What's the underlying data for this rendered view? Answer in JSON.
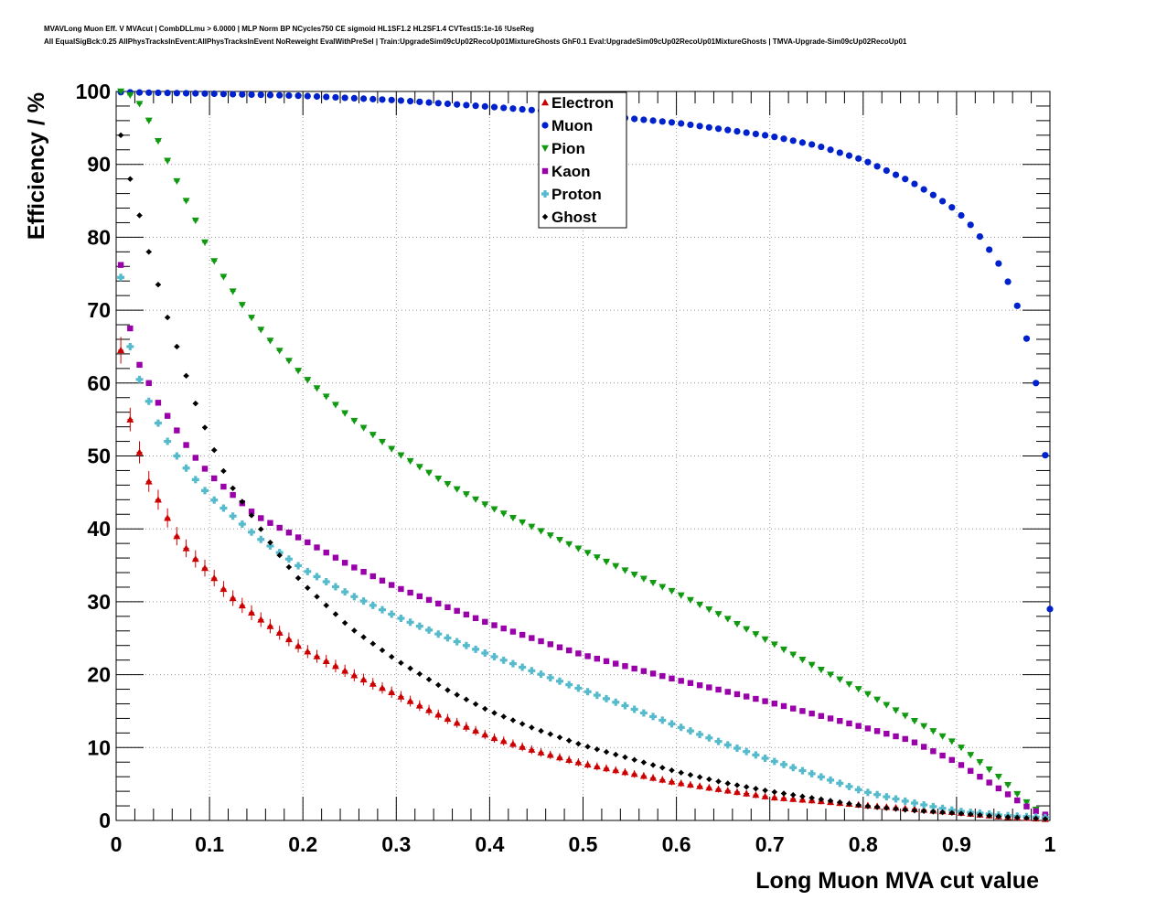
{
  "header": {
    "title_line1": "MVAVLong Muon Eff. V MVAcut | CombDLLmu > 6.0000 | MLP Norm BP NCycles750 CE sigmoid HL1SF1.2 HL2SF1.4 CVTest15:1e-16 !UseReg",
    "title_line2": "All EqualSigBck:0.25 AllPhysTracksInEvent:AllPhysTracksInEvent NoReweight EvalWithPreSel | Train:UpgradeSim09cUp02RecoUp01MixtureGhosts GhF0.1 Eval:UpgradeSim09cUp02RecoUp01MixtureGhosts | TMVA-Upgrade-Sim09cUp02RecoUp01"
  },
  "chart_data": {
    "type": "scatter",
    "xlabel": "Long Muon MVA cut value",
    "ylabel": "Efficiency / %",
    "xlim": [
      0,
      1
    ],
    "ylim": [
      0,
      100
    ],
    "grid": true,
    "legend_position": "top-center",
    "x_ticks": [
      "0",
      "0.1",
      "0.2",
      "0.3",
      "0.4",
      "0.5",
      "0.6",
      "0.7",
      "0.8",
      "0.9",
      "1"
    ],
    "y_ticks": [
      "0",
      "10",
      "20",
      "30",
      "40",
      "50",
      "60",
      "70",
      "80",
      "90",
      "100"
    ],
    "x_step": 0.01,
    "x_first": 0.005,
    "series": [
      {
        "name": "Electron",
        "marker": "triangle-up",
        "color": "#cc0000",
        "anchors": [
          [
            0.005,
            64.5
          ],
          [
            0.015,
            55
          ],
          [
            0.025,
            50.5
          ],
          [
            0.035,
            46.5
          ],
          [
            0.045,
            44
          ],
          [
            0.055,
            41.5
          ],
          [
            0.065,
            39
          ],
          [
            0.08,
            36.5
          ],
          [
            0.1,
            34
          ],
          [
            0.12,
            31
          ],
          [
            0.15,
            28
          ],
          [
            0.2,
            23.5
          ],
          [
            0.25,
            20.2
          ],
          [
            0.3,
            17.3
          ],
          [
            0.35,
            14.2
          ],
          [
            0.4,
            11.5
          ],
          [
            0.45,
            9.5
          ],
          [
            0.5,
            7.8
          ],
          [
            0.55,
            6.5
          ],
          [
            0.6,
            5.2
          ],
          [
            0.65,
            4.2
          ],
          [
            0.7,
            3.2
          ],
          [
            0.75,
            2.7
          ],
          [
            0.8,
            2.1
          ],
          [
            0.85,
            1.6
          ],
          [
            0.9,
            1.1
          ],
          [
            0.95,
            0.5
          ],
          [
            0.995,
            0.2
          ]
        ]
      },
      {
        "name": "Muon",
        "marker": "circle",
        "color": "#0022cc",
        "anchors": [
          [
            0.005,
            99.9
          ],
          [
            0.1,
            99.7
          ],
          [
            0.2,
            99.4
          ],
          [
            0.3,
            98.8
          ],
          [
            0.4,
            97.9
          ],
          [
            0.5,
            96.9
          ],
          [
            0.6,
            95.7
          ],
          [
            0.7,
            93.9
          ],
          [
            0.75,
            92.6
          ],
          [
            0.8,
            90.6
          ],
          [
            0.85,
            87.7
          ],
          [
            0.875,
            85.8
          ],
          [
            0.895,
            84.1
          ],
          [
            0.905,
            83
          ],
          [
            0.915,
            81.7
          ],
          [
            0.925,
            80.1
          ],
          [
            0.935,
            78.3
          ],
          [
            0.945,
            76.4
          ],
          [
            0.955,
            73.9
          ],
          [
            0.965,
            70.6
          ],
          [
            0.975,
            66.1
          ],
          [
            0.985,
            60
          ],
          [
            0.995,
            50.1
          ],
          [
            1.0,
            29
          ]
        ]
      },
      {
        "name": "Pion",
        "marker": "triangle-down",
        "color": "#119911",
        "anchors": [
          [
            0.005,
            100
          ],
          [
            0.015,
            99.5
          ],
          [
            0.025,
            98.3
          ],
          [
            0.035,
            96
          ],
          [
            0.045,
            93.2
          ],
          [
            0.055,
            90.5
          ],
          [
            0.065,
            87.7
          ],
          [
            0.075,
            85
          ],
          [
            0.085,
            82.3
          ],
          [
            0.1,
            77.8
          ],
          [
            0.12,
            73.5
          ],
          [
            0.14,
            69.8
          ],
          [
            0.16,
            66.5
          ],
          [
            0.2,
            61
          ],
          [
            0.25,
            55.3
          ],
          [
            0.3,
            50.5
          ],
          [
            0.35,
            46.5
          ],
          [
            0.4,
            43
          ],
          [
            0.45,
            40
          ],
          [
            0.5,
            37
          ],
          [
            0.55,
            34
          ],
          [
            0.6,
            31.2
          ],
          [
            0.65,
            28
          ],
          [
            0.7,
            24.5
          ],
          [
            0.75,
            21
          ],
          [
            0.8,
            17.7
          ],
          [
            0.85,
            14
          ],
          [
            0.9,
            10.5
          ],
          [
            0.93,
            7.5
          ],
          [
            0.95,
            5.5
          ],
          [
            0.97,
            3
          ],
          [
            0.985,
            1.5
          ],
          [
            0.995,
            0.5
          ]
        ]
      },
      {
        "name": "Kaon",
        "marker": "square",
        "color": "#9900aa",
        "anchors": [
          [
            0.005,
            76.2
          ],
          [
            0.015,
            67.5
          ],
          [
            0.025,
            62.5
          ],
          [
            0.035,
            60
          ],
          [
            0.045,
            57.3
          ],
          [
            0.055,
            55.5
          ],
          [
            0.065,
            53.5
          ],
          [
            0.08,
            50.5
          ],
          [
            0.1,
            47.5
          ],
          [
            0.15,
            41.8
          ],
          [
            0.2,
            38.5
          ],
          [
            0.25,
            35
          ],
          [
            0.3,
            32
          ],
          [
            0.35,
            29.5
          ],
          [
            0.4,
            27
          ],
          [
            0.45,
            24.8
          ],
          [
            0.5,
            22.7
          ],
          [
            0.55,
            21
          ],
          [
            0.6,
            19.3
          ],
          [
            0.65,
            17.8
          ],
          [
            0.7,
            16.2
          ],
          [
            0.75,
            14.5
          ],
          [
            0.8,
            12.8
          ],
          [
            0.85,
            11
          ],
          [
            0.9,
            8
          ],
          [
            0.95,
            4
          ],
          [
            0.98,
            1.5
          ],
          [
            0.995,
            0.8
          ]
        ]
      },
      {
        "name": "Proton",
        "marker": "plus",
        "color": "#55bbcc",
        "anchors": [
          [
            0.005,
            74.5
          ],
          [
            0.015,
            65
          ],
          [
            0.025,
            60.5
          ],
          [
            0.035,
            57.5
          ],
          [
            0.045,
            54.5
          ],
          [
            0.055,
            52
          ],
          [
            0.065,
            50
          ],
          [
            0.08,
            47.5
          ],
          [
            0.1,
            44.5
          ],
          [
            0.15,
            39
          ],
          [
            0.2,
            34.5
          ],
          [
            0.25,
            31
          ],
          [
            0.3,
            28
          ],
          [
            0.35,
            25.3
          ],
          [
            0.4,
            22.7
          ],
          [
            0.45,
            20.3
          ],
          [
            0.5,
            17.9
          ],
          [
            0.55,
            15.5
          ],
          [
            0.6,
            13
          ],
          [
            0.65,
            10.6
          ],
          [
            0.7,
            8.3
          ],
          [
            0.75,
            6.2
          ],
          [
            0.8,
            4
          ],
          [
            0.85,
            2.5
          ],
          [
            0.9,
            1.3
          ],
          [
            0.95,
            0.7
          ],
          [
            0.995,
            0.4
          ]
        ]
      },
      {
        "name": "Ghost",
        "marker": "diamond",
        "color": "#000000",
        "anchors": [
          [
            0.005,
            94
          ],
          [
            0.015,
            88
          ],
          [
            0.025,
            83
          ],
          [
            0.035,
            78
          ],
          [
            0.045,
            73.5
          ],
          [
            0.055,
            69
          ],
          [
            0.065,
            65
          ],
          [
            0.075,
            61
          ],
          [
            0.085,
            57.2
          ],
          [
            0.095,
            53.9
          ],
          [
            0.105,
            50.8
          ],
          [
            0.12,
            46.5
          ],
          [
            0.14,
            42.8
          ],
          [
            0.16,
            39
          ],
          [
            0.18,
            35.5
          ],
          [
            0.2,
            32.5
          ],
          [
            0.25,
            26.5
          ],
          [
            0.3,
            22
          ],
          [
            0.35,
            18.2
          ],
          [
            0.4,
            15
          ],
          [
            0.45,
            12.5
          ],
          [
            0.5,
            10.3
          ],
          [
            0.55,
            8.5
          ],
          [
            0.6,
            6.7
          ],
          [
            0.65,
            5.2
          ],
          [
            0.7,
            4
          ],
          [
            0.75,
            3
          ],
          [
            0.8,
            2
          ],
          [
            0.85,
            1.4
          ],
          [
            0.9,
            1
          ],
          [
            0.95,
            0.5
          ],
          [
            0.995,
            0.2
          ]
        ]
      }
    ]
  }
}
